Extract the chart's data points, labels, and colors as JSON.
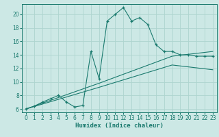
{
  "xlabel": "Humidex (Indice chaleur)",
  "xlim": [
    -0.5,
    23.5
  ],
  "ylim": [
    5.5,
    21.5
  ],
  "xticks": [
    0,
    1,
    2,
    3,
    4,
    5,
    6,
    7,
    8,
    9,
    10,
    11,
    12,
    13,
    14,
    15,
    16,
    17,
    18,
    19,
    20,
    21,
    22,
    23
  ],
  "yticks": [
    6,
    8,
    10,
    12,
    14,
    16,
    18,
    20
  ],
  "bg_color": "#cce8e5",
  "line_color": "#1a7a6e",
  "grid_color": "#aed4cf",
  "line1_x": [
    0,
    1,
    2,
    3,
    4,
    5,
    6,
    7,
    8,
    9,
    10,
    11,
    12,
    13,
    14,
    15,
    16,
    17,
    18,
    19,
    20,
    21,
    22,
    23
  ],
  "line1_y": [
    6.0,
    6.4,
    7.0,
    7.5,
    8.0,
    7.0,
    6.3,
    6.5,
    14.5,
    10.5,
    19.0,
    20.0,
    21.0,
    19.0,
    19.5,
    18.5,
    15.5,
    14.5,
    14.5,
    14.0,
    14.0,
    13.8,
    13.8,
    13.8
  ],
  "line2_x": [
    0,
    9,
    18,
    23
  ],
  "line2_y": [
    6.0,
    9.8,
    13.8,
    14.5
  ],
  "line3_x": [
    0,
    9,
    18,
    23
  ],
  "line3_y": [
    6.0,
    9.2,
    12.5,
    11.8
  ],
  "tick_fontsize": 5.5,
  "xlabel_fontsize": 6.5
}
